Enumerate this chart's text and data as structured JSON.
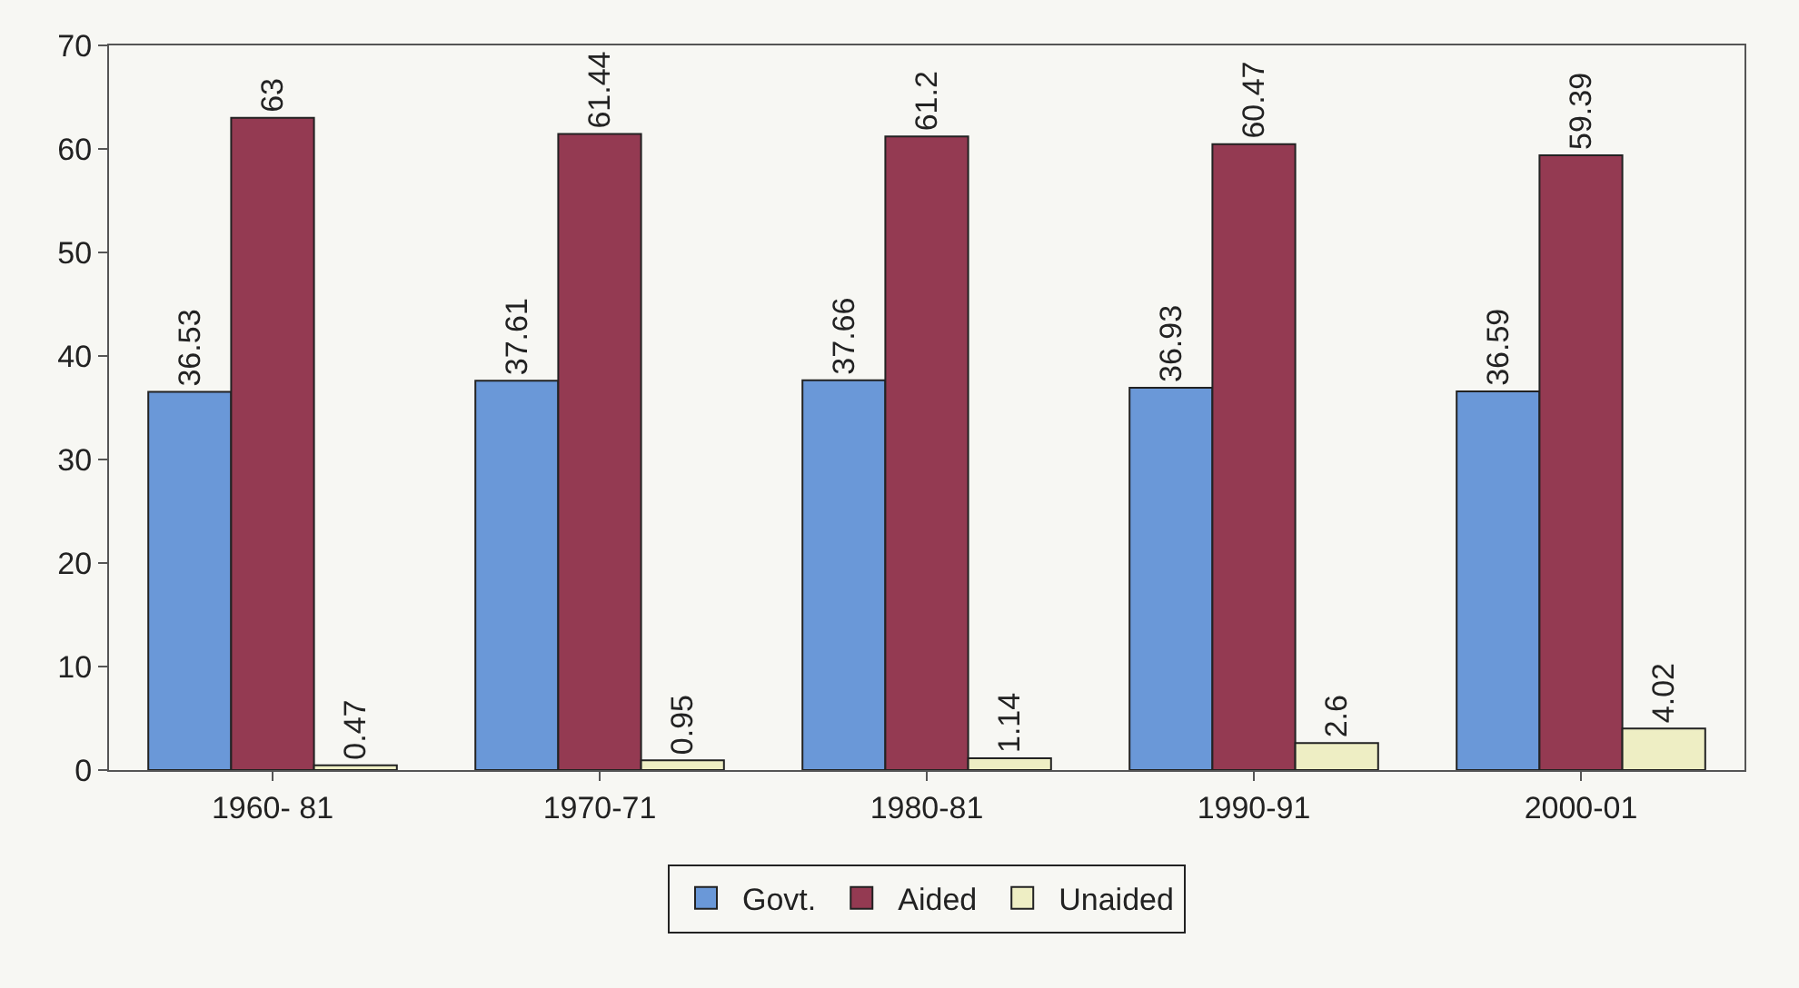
{
  "chart_data": {
    "type": "bar",
    "categories": [
      "1960- 81",
      "1970-71",
      "1980-81",
      "1990-91",
      "2000-01"
    ],
    "series": [
      {
        "name": "Govt.",
        "color": "#6a98d8",
        "values": [
          36.53,
          37.61,
          37.66,
          36.93,
          36.59
        ]
      },
      {
        "name": "Aided",
        "color": "#943a52",
        "values": [
          63,
          61.44,
          61.2,
          60.47,
          59.39
        ]
      },
      {
        "name": "Unaided",
        "color": "#eeeec4",
        "values": [
          0.47,
          0.95,
          1.14,
          2.6,
          4.02
        ]
      }
    ],
    "ylim": [
      0,
      70
    ],
    "yticks": [
      0,
      10,
      20,
      30,
      40,
      50,
      60,
      70
    ],
    "grid": false,
    "legend": "bottom",
    "data_labels": true
  }
}
